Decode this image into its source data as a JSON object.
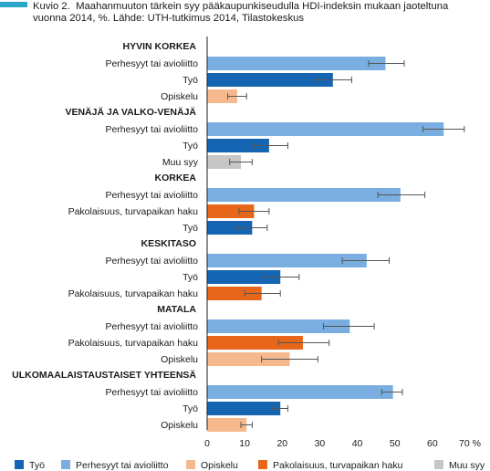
{
  "figure": {
    "number": "Kuvio 2.",
    "title_line1": "Maahanmuuton tärkein syy pääkaupunkiseudulla HDI-indeksin mukaan jaoteltuna",
    "title_line2": "vuonna 2014, %. Lähde: UTH-tutkimus 2014, Tilastokeskus"
  },
  "chart_data": {
    "type": "bar",
    "orientation": "horizontal",
    "x_ticks": [
      "0",
      "10",
      "20",
      "30",
      "40",
      "50",
      "60",
      "70 %"
    ],
    "xlim": [
      0,
      70
    ],
    "grid": false,
    "error_bars": true,
    "categories_colors": {
      "Työ": "#1565b3",
      "Perhesyyt tai avioliitto": "#7aaee0",
      "Opiskelu": "#f6b98e",
      "Pakolaisuus, turvapaikan haku": "#e8661a",
      "Muu syy": "#c6c6c6"
    },
    "groups": [
      {
        "name": "HYVIN KORKEA",
        "bars": [
          {
            "label": "Perhesyyt tai avioliitto",
            "category": "Perhesyyt tai avioliitto",
            "value": 47.5,
            "err": [
              43.0,
              52.5
            ]
          },
          {
            "label": "Työ",
            "category": "Työ",
            "value": 33.5,
            "err": [
              29.0,
              38.5
            ]
          },
          {
            "label": "Opiskelu",
            "category": "Opiskelu",
            "value": 8.0,
            "err": [
              5.5,
              10.5
            ]
          }
        ]
      },
      {
        "name": "VENÄJÄ JA VALKO-VENÄJÄ",
        "bars": [
          {
            "label": "Perhesyyt tai avioliitto",
            "category": "Perhesyyt tai avioliitto",
            "value": 63.0,
            "err": [
              57.5,
              68.5
            ]
          },
          {
            "label": "Työ",
            "category": "Työ",
            "value": 16.5,
            "err": [
              12.5,
              21.5
            ]
          },
          {
            "label": "Muu syy",
            "category": "Muu syy",
            "value": 9.0,
            "err": [
              6.0,
              12.0
            ]
          }
        ]
      },
      {
        "name": "KORKEA",
        "bars": [
          {
            "label": "Perhesyyt tai avioliitto",
            "category": "Perhesyyt tai avioliitto",
            "value": 51.5,
            "err": [
              45.5,
              58.0
            ]
          },
          {
            "label": "Pakolaisuus, turvapaikan haku",
            "category": "Pakolaisuus, turvapaikan haku",
            "value": 12.5,
            "err": [
              8.5,
              16.5
            ]
          },
          {
            "label": "Työ",
            "category": "Työ",
            "value": 12.0,
            "err": [
              8.0,
              16.0
            ]
          }
        ]
      },
      {
        "name": "KESKITASO",
        "bars": [
          {
            "label": "Perhesyyt tai avioliitto",
            "category": "Perhesyyt tai avioliitto",
            "value": 42.5,
            "err": [
              36.0,
              48.5
            ]
          },
          {
            "label": "Työ",
            "category": "Työ",
            "value": 19.5,
            "err": [
              14.5,
              24.5
            ]
          },
          {
            "label": "Pakolaisuus, turvapaikan haku",
            "category": "Pakolaisuus, turvapaikan haku",
            "value": 14.5,
            "err": [
              10.0,
              19.5
            ]
          }
        ]
      },
      {
        "name": "MATALA",
        "bars": [
          {
            "label": "Perhesyyt tai avioliitto",
            "category": "Perhesyyt tai avioliitto",
            "value": 38.0,
            "err": [
              31.0,
              44.5
            ]
          },
          {
            "label": "Pakolaisuus, turvapaikan haku",
            "category": "Pakolaisuus, turvapaikan haku",
            "value": 25.5,
            "err": [
              19.0,
              32.5
            ]
          },
          {
            "label": "Opiskelu",
            "category": "Opiskelu",
            "value": 22.0,
            "err": [
              14.5,
              29.5
            ]
          }
        ]
      },
      {
        "name": "ULKOMAALAISTAUSTAISET YHTEENSÄ",
        "bars": [
          {
            "label": "Perhesyyt tai avioliitto",
            "category": "Perhesyyt tai avioliitto",
            "value": 49.5,
            "err": [
              46.5,
              52.0
            ]
          },
          {
            "label": "Työ",
            "category": "Työ",
            "value": 19.5,
            "err": [
              17.5,
              21.5
            ]
          },
          {
            "label": "Opiskelu",
            "category": "Opiskelu",
            "value": 10.5,
            "err": [
              9.0,
              12.0
            ]
          }
        ]
      }
    ],
    "legend": {
      "placement": "bottom",
      "items": [
        {
          "name": "Työ",
          "color": "#1565b3"
        },
        {
          "name": "Perhesyyt tai avioliitto",
          "color": "#7aaee0"
        },
        {
          "name": "Opiskelu",
          "color": "#f6b98e"
        },
        {
          "name": "Pakolaisuus, turvapaikan haku",
          "color": "#e8661a"
        },
        {
          "name": "Muu syy",
          "color": "#c6c6c6"
        }
      ]
    }
  }
}
